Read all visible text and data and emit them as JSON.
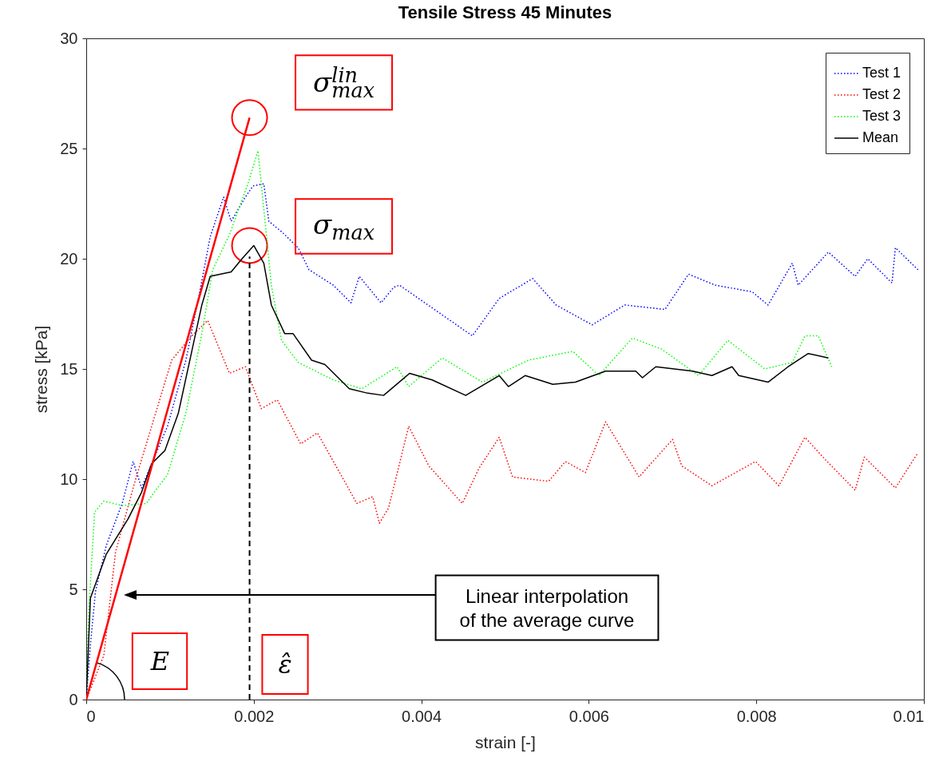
{
  "chart_data": {
    "type": "line",
    "title": "Tensile Stress 45 Minutes",
    "xlabel": "strain [-]",
    "ylabel": "stress [kPa]",
    "xlim": [
      0,
      0.01
    ],
    "xticks": [
      0,
      0.002,
      0.004,
      0.006,
      0.008,
      0.01
    ],
    "ylim": [
      0,
      30
    ],
    "yticks": [
      0,
      5,
      10,
      15,
      20,
      25,
      30
    ],
    "grid": false,
    "legend": "top right",
    "series": [
      {
        "name": "Test 1",
        "color": "#0000ff",
        "line_style": "dotted",
        "x": [
          0,
          5e-05,
          0.00011,
          0.00024,
          0.00043,
          0.00056,
          0.00066,
          0.00097,
          0.00119,
          0.00135,
          0.00148,
          0.00164,
          0.00173,
          0.0019,
          0.00199,
          0.00212,
          0.00218,
          0.00234,
          0.00253,
          0.00266,
          0.00295,
          0.00316,
          0.00326,
          0.00352,
          0.00367,
          0.00374,
          0.00461,
          0.00493,
          0.00533,
          0.00561,
          0.00604,
          0.00643,
          0.00691,
          0.00719,
          0.00751,
          0.00795,
          0.00814,
          0.00843,
          0.0085,
          0.00886,
          0.00918,
          0.00933,
          0.00962,
          0.00966,
          0.00993
        ],
        "values": [
          0,
          2.5,
          4.9,
          7.0,
          8.9,
          10.8,
          9.6,
          12.4,
          15.4,
          18.4,
          21.0,
          22.8,
          21.7,
          22.8,
          23.3,
          23.4,
          21.7,
          21.2,
          20.5,
          19.5,
          18.8,
          18.0,
          19.2,
          18.0,
          18.7,
          18.8,
          16.5,
          18.2,
          19.1,
          17.9,
          17.0,
          17.9,
          17.7,
          19.3,
          18.8,
          18.5,
          17.9,
          19.8,
          18.8,
          20.3,
          19.2,
          20.0,
          18.9,
          20.5,
          19.5
        ]
      },
      {
        "name": "Test 2",
        "color": "#ff0000",
        "line_style": "dotted",
        "x": [
          0,
          0.00021,
          0.00035,
          0.00059,
          0.00102,
          0.00126,
          0.00145,
          0.00171,
          0.0019,
          0.00209,
          0.00228,
          0.00256,
          0.00276,
          0.00323,
          0.00342,
          0.0035,
          0.00361,
          0.00385,
          0.00409,
          0.00449,
          0.00469,
          0.00493,
          0.00509,
          0.00552,
          0.00572,
          0.00596,
          0.0062,
          0.0066,
          0.007,
          0.00711,
          0.00747,
          0.00799,
          0.00827,
          0.00858,
          0.00882,
          0.00918,
          0.00929,
          0.00966,
          0.00993
        ],
        "values": [
          0,
          2.0,
          6.7,
          10.0,
          15.4,
          16.5,
          17.2,
          14.8,
          15.1,
          13.2,
          13.6,
          11.6,
          12.1,
          8.9,
          9.2,
          8.0,
          8.7,
          12.4,
          10.6,
          8.9,
          10.5,
          11.9,
          10.1,
          9.9,
          10.8,
          10.3,
          12.6,
          10.1,
          11.8,
          10.6,
          9.7,
          10.8,
          9.7,
          11.9,
          10.9,
          9.5,
          11.0,
          9.6,
          11.2
        ]
      },
      {
        "name": "Test 3",
        "color": "#00ff00",
        "line_style": "dotted",
        "x": [
          0,
          3e-05,
          0.0001,
          0.00021,
          0.00043,
          0.00072,
          0.00081,
          0.00097,
          0.00119,
          0.00138,
          0.00151,
          0.00171,
          0.00193,
          0.00205,
          0.00214,
          0.00221,
          0.00233,
          0.00253,
          0.00295,
          0.00329,
          0.00371,
          0.00385,
          0.00425,
          0.00473,
          0.00528,
          0.00581,
          0.00612,
          0.00652,
          0.00687,
          0.00731,
          0.00766,
          0.0081,
          0.00843,
          0.00858,
          0.00874,
          0.0089
        ],
        "values": [
          0,
          4.0,
          8.5,
          9.0,
          8.8,
          8.9,
          9.4,
          10.2,
          13.0,
          16.6,
          19.5,
          21.1,
          23.4,
          24.9,
          21.5,
          18.8,
          16.3,
          15.3,
          14.5,
          14.1,
          15.1,
          14.2,
          15.5,
          14.4,
          15.4,
          15.8,
          14.7,
          16.4,
          15.9,
          14.7,
          16.3,
          15.0,
          15.3,
          16.5,
          16.5,
          15.1
        ]
      },
      {
        "name": "Mean",
        "color": "#000000",
        "line_style": "solid",
        "x": [
          0,
          5e-05,
          0.00024,
          0.0005,
          0.00066,
          0.00078,
          0.00094,
          0.0011,
          0.00126,
          0.00138,
          0.00148,
          0.00173,
          0.00186,
          0.002,
          0.00212,
          0.00221,
          0.00237,
          0.00247,
          0.00269,
          0.00285,
          0.00314,
          0.00336,
          0.00355,
          0.00386,
          0.00413,
          0.00453,
          0.00493,
          0.00504,
          0.00524,
          0.00557,
          0.00584,
          0.0062,
          0.00656,
          0.00664,
          0.0068,
          0.00724,
          0.00747,
          0.00771,
          0.00779,
          0.00814,
          0.00838,
          0.00862,
          0.00886
        ],
        "values": [
          0,
          4.6,
          6.6,
          8.2,
          9.4,
          10.7,
          11.3,
          13.0,
          15.8,
          17.9,
          19.2,
          19.4,
          20.0,
          20.6,
          19.8,
          17.9,
          16.6,
          16.6,
          15.4,
          15.2,
          14.1,
          13.9,
          13.8,
          14.8,
          14.5,
          13.8,
          14.7,
          14.2,
          14.7,
          14.3,
          14.4,
          14.9,
          14.9,
          14.6,
          15.1,
          14.9,
          14.7,
          15.1,
          14.7,
          14.4,
          15.1,
          15.7,
          15.5
        ]
      },
      {
        "color": "#ff0000",
        "line_style": "solid",
        "x": [
          0,
          0.00195
        ],
        "values": [
          0,
          26.4
        ]
      },
      {
        "color": "#000000",
        "line_style": "dashed",
        "x": [
          0.00195,
          0.00195
        ],
        "values": [
          0,
          20.1
        ]
      }
    ],
    "annotations": [
      {
        "text": "σ$_{max}$$^{lin}$",
        "x": 0.00195,
        "y": 26.4
      },
      {
        "text": "σ$_{max}$",
        "x": 0.00195,
        "y": 20.6
      },
      "E",
      "ε̂",
      "Linear interpolation\nof the average curve"
    ]
  }
}
